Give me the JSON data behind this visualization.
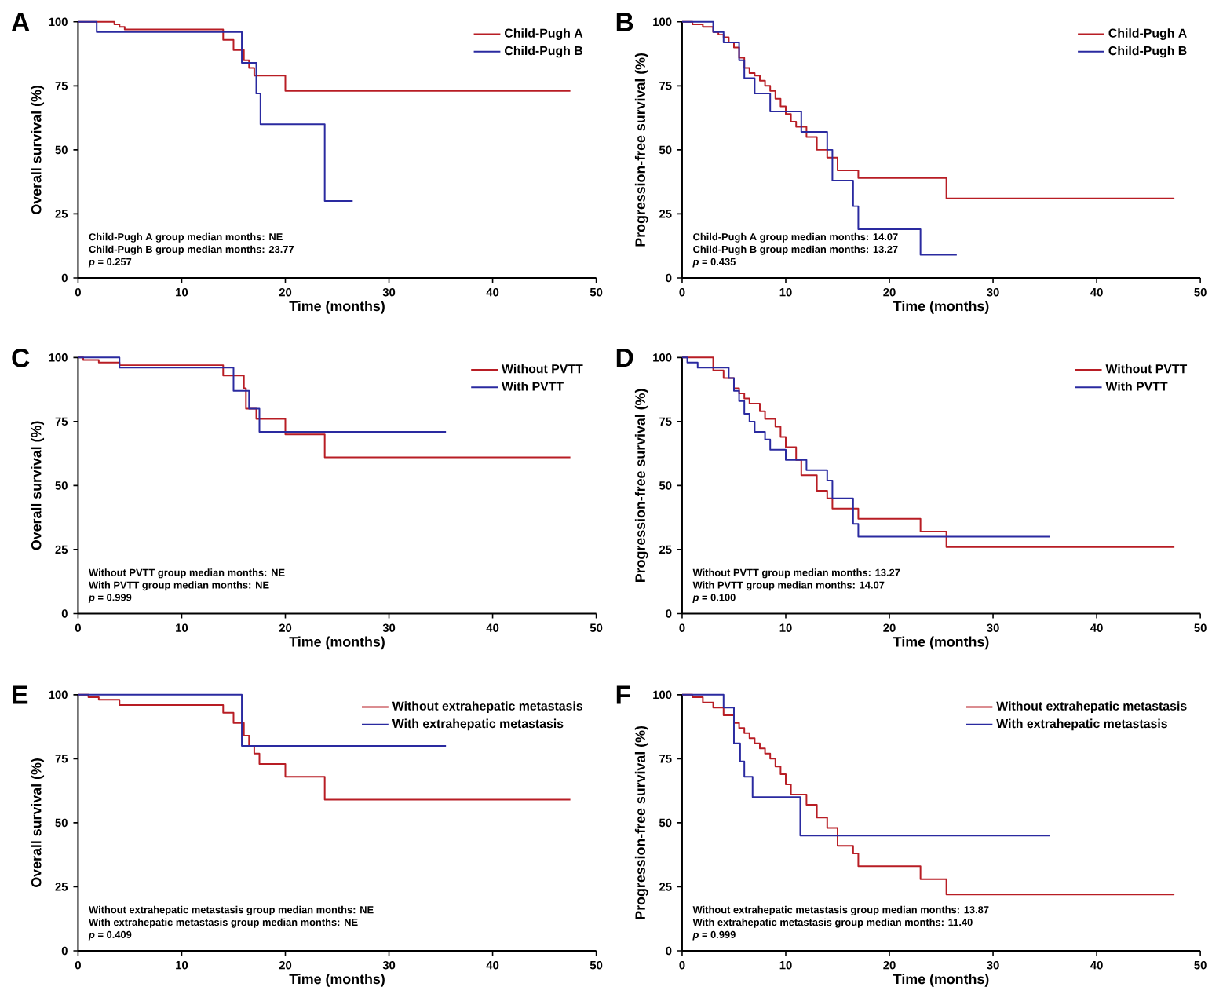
{
  "chart_data": [
    {
      "type": "step",
      "title": "A",
      "xlabel": "Time (months)",
      "ylabel": "Overall survival (%)",
      "annotations": [
        "Child-Pugh A group median months: NE",
        "Child-Pugh B group median months: 23.77",
        "*p* = 0.257"
      ],
      "xlim": [
        0,
        50
      ],
      "ylim": [
        0,
        100
      ],
      "xticks": [
        0,
        10,
        20,
        30,
        40,
        50
      ],
      "yticks": [
        0,
        25,
        50,
        75,
        100
      ],
      "legend": "top right",
      "series": [
        {
          "name": "Child-Pugh A",
          "color": "#b81d24",
          "x": [
            0,
            3.5,
            4,
            4.5,
            14,
            15,
            16,
            16.5,
            17,
            20,
            47.5
          ],
          "values": [
            100,
            99,
            98,
            97,
            93,
            89,
            85,
            82,
            79,
            73,
            73
          ]
        },
        {
          "name": "Child-Pugh B",
          "color": "#2a2aa0",
          "x": [
            0,
            1.8,
            15.8,
            17.2,
            17.6,
            23.8,
            26.5
          ],
          "values": [
            100,
            96,
            84,
            72,
            60,
            30,
            30
          ]
        }
      ]
    },
    {
      "type": "step",
      "title": "B",
      "xlabel": "Time (months)",
      "ylabel": "Progression-free survival (%)",
      "annotations": [
        "Child-Pugh A group median months: 14.07",
        "Child-Pugh B group median months: 13.27",
        "*p* = 0.435"
      ],
      "xlim": [
        0,
        50
      ],
      "ylim": [
        0,
        100
      ],
      "xticks": [
        0,
        10,
        20,
        30,
        40,
        50
      ],
      "yticks": [
        0,
        25,
        50,
        75,
        100
      ],
      "legend": "top right",
      "series": [
        {
          "name": "Child-Pugh A",
          "color": "#b81d24",
          "x": [
            0,
            1,
            2,
            3,
            3.5,
            4,
            4.5,
            5,
            5.5,
            6,
            6.5,
            7,
            7.5,
            8,
            8.5,
            9,
            9.5,
            10,
            10.5,
            11,
            12,
            13,
            14,
            15,
            17,
            25.5,
            47.5
          ],
          "values": [
            100,
            99,
            98,
            96,
            95,
            94,
            92,
            90,
            86,
            82,
            80,
            79,
            77,
            75,
            73,
            70,
            67,
            64,
            61,
            59,
            55,
            50,
            47,
            42,
            39,
            31,
            31
          ]
        },
        {
          "name": "Child-Pugh B",
          "color": "#2a2aa0",
          "x": [
            0,
            3,
            4,
            5.5,
            6,
            7,
            8.5,
            11.5,
            14,
            14.5,
            16.5,
            17,
            23,
            26.5
          ],
          "values": [
            100,
            96,
            92,
            85,
            78,
            72,
            65,
            57,
            50,
            38,
            28,
            19,
            9,
            9
          ]
        }
      ]
    },
    {
      "type": "step",
      "title": "C",
      "xlabel": "Time (months)",
      "ylabel": "Overall survival (%)",
      "annotations": [
        "Without PVTT group median months: NE",
        "With PVTT group median months: NE",
        "*p* = 0.999"
      ],
      "xlim": [
        0,
        50
      ],
      "ylim": [
        0,
        100
      ],
      "xticks": [
        0,
        10,
        20,
        30,
        40,
        50
      ],
      "yticks": [
        0,
        25,
        50,
        75,
        100
      ],
      "legend": "top right",
      "series": [
        {
          "name": "Without PVTT",
          "color": "#b81d24",
          "x": [
            0,
            0.5,
            2,
            4,
            14,
            16,
            16.2,
            17.2,
            20,
            23.8,
            47.5
          ],
          "values": [
            100,
            99,
            98,
            97,
            93,
            88,
            80,
            76,
            70,
            61,
            61
          ]
        },
        {
          "name": "With PVTT",
          "color": "#2a2aa0",
          "x": [
            0,
            4,
            15,
            16.5,
            17.5,
            35.5
          ],
          "values": [
            100,
            96,
            87,
            80,
            71,
            71
          ]
        }
      ]
    },
    {
      "type": "step",
      "title": "D",
      "xlabel": "Time (months)",
      "ylabel": "Progression-free survival (%)",
      "annotations": [
        "Without PVTT group median months: 13.27",
        "With PVTT group median months: 14.07",
        "*p* = 0.100"
      ],
      "xlim": [
        0,
        50
      ],
      "ylim": [
        0,
        100
      ],
      "xticks": [
        0,
        10,
        20,
        30,
        40,
        50
      ],
      "yticks": [
        0,
        25,
        50,
        75,
        100
      ],
      "legend": "top right",
      "series": [
        {
          "name": "Without PVTT",
          "color": "#b81d24",
          "x": [
            0,
            3,
            4,
            5,
            5.5,
            6,
            6.5,
            7.5,
            8,
            9,
            9.5,
            10,
            11,
            11.5,
            13,
            14,
            14.5,
            17,
            23,
            25.5,
            47.5
          ],
          "values": [
            100,
            95,
            92,
            88,
            86,
            84,
            82,
            79,
            76,
            73,
            69,
            65,
            60,
            54,
            48,
            45,
            41,
            37,
            32,
            26,
            26
          ]
        },
        {
          "name": "With PVTT",
          "color": "#2a2aa0",
          "x": [
            0,
            0.5,
            1.5,
            4.5,
            5,
            5.5,
            6,
            6.5,
            7,
            8,
            8.5,
            10,
            12,
            14,
            14.5,
            16.5,
            17,
            35.5
          ],
          "values": [
            100,
            98,
            96,
            92,
            87,
            83,
            78,
            75,
            71,
            68,
            64,
            60,
            56,
            52,
            45,
            35,
            30,
            30
          ]
        }
      ]
    },
    {
      "type": "step",
      "title": "E",
      "xlabel": "Time (months)",
      "ylabel": "Overall survival (%)",
      "annotations": [
        "Without extrahepatic metastasis group median months: NE",
        "With extrahepatic metastasis group median months: NE",
        "*p* = 0.409"
      ],
      "xlim": [
        0,
        50
      ],
      "ylim": [
        0,
        100
      ],
      "xticks": [
        0,
        10,
        20,
        30,
        40,
        50
      ],
      "yticks": [
        0,
        25,
        50,
        75,
        100
      ],
      "legend": "top right",
      "series": [
        {
          "name": "Without extrahepatic metastasis",
          "color": "#b81d24",
          "x": [
            0,
            1,
            2,
            4,
            14,
            15,
            16,
            16.5,
            17,
            17.5,
            20,
            23.8,
            47.5
          ],
          "values": [
            100,
            99,
            98,
            96,
            93,
            89,
            84,
            80,
            77,
            73,
            68,
            59,
            59
          ]
        },
        {
          "name": "With extrahepatic metastasis",
          "color": "#2a2aa0",
          "x": [
            0,
            15.8,
            35.5
          ],
          "values": [
            100,
            80,
            80
          ]
        }
      ]
    },
    {
      "type": "step",
      "title": "F",
      "xlabel": "Time (months)",
      "ylabel": "Progression-free survival (%)",
      "annotations": [
        "Without extrahepatic metastasis group median months: 13.87",
        "With extrahepatic metastasis group median months: 11.40",
        "*p* = 0.999"
      ],
      "xlim": [
        0,
        50
      ],
      "ylim": [
        0,
        100
      ],
      "xticks": [
        0,
        10,
        20,
        30,
        40,
        50
      ],
      "yticks": [
        0,
        25,
        50,
        75,
        100
      ],
      "legend": "top right",
      "series": [
        {
          "name": "Without extrahepatic metastasis",
          "color": "#b81d24",
          "x": [
            0,
            1,
            2,
            3,
            4,
            5,
            5.5,
            6,
            6.5,
            7,
            7.5,
            8,
            8.5,
            9,
            9.5,
            10,
            10.5,
            12,
            13,
            14,
            15,
            16.5,
            17,
            23,
            25.5,
            47.5
          ],
          "values": [
            100,
            99,
            97,
            95,
            92,
            89,
            87,
            85,
            83,
            81,
            79,
            77,
            75,
            72,
            69,
            65,
            61,
            57,
            52,
            48,
            41,
            38,
            33,
            28,
            22,
            22
          ]
        },
        {
          "name": "With extrahepatic metastasis",
          "color": "#2a2aa0",
          "x": [
            0,
            4,
            5,
            5.6,
            6,
            6.8,
            11.4,
            35.5
          ],
          "values": [
            100,
            95,
            81,
            74,
            68,
            60,
            45,
            45
          ]
        }
      ]
    }
  ]
}
